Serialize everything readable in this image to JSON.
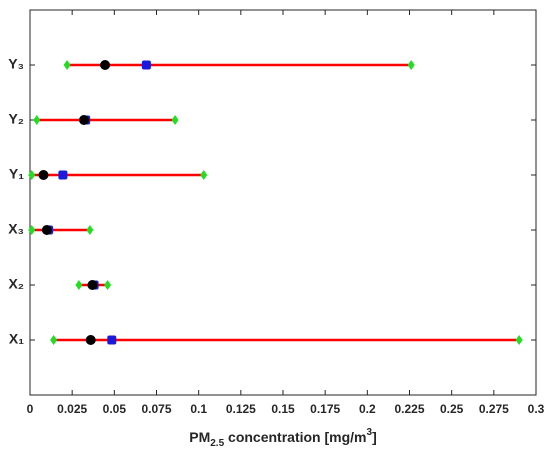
{
  "chart_data": {
    "type": "range",
    "categories": [
      "X₁",
      "X₂",
      "X₃",
      "Y₁",
      "Y₂",
      "Y₃"
    ],
    "range_color": "#ff0000",
    "series": [
      {
        "color": "#22dd22",
        "marker": "diamond",
        "values": [
          0.014,
          0.029,
          0.001,
          0.001,
          0.004,
          0.022
        ]
      },
      {
        "color": "#22dd22",
        "marker": "diamond",
        "values": [
          0.29,
          0.046,
          0.0355,
          0.103,
          0.086,
          0.226
        ]
      },
      {
        "color": "#1a1adc",
        "marker": "square",
        "values": [
          0.0485,
          0.038,
          0.011,
          0.0195,
          0.033,
          0.069
        ]
      },
      {
        "color": "#000000",
        "marker": "circle",
        "values": [
          0.036,
          0.037,
          0.01,
          0.008,
          0.032,
          0.0445
        ]
      }
    ],
    "xlim": [
      0,
      0.3
    ],
    "xticks": [
      0,
      0.025,
      0.05,
      0.075,
      0.1,
      0.125,
      0.15,
      0.175,
      0.2,
      0.225,
      0.25,
      0.275,
      0.3
    ],
    "xlabel": [
      "PM",
      "2.5",
      " concentration [mg/m",
      "3",
      "]"
    ]
  }
}
